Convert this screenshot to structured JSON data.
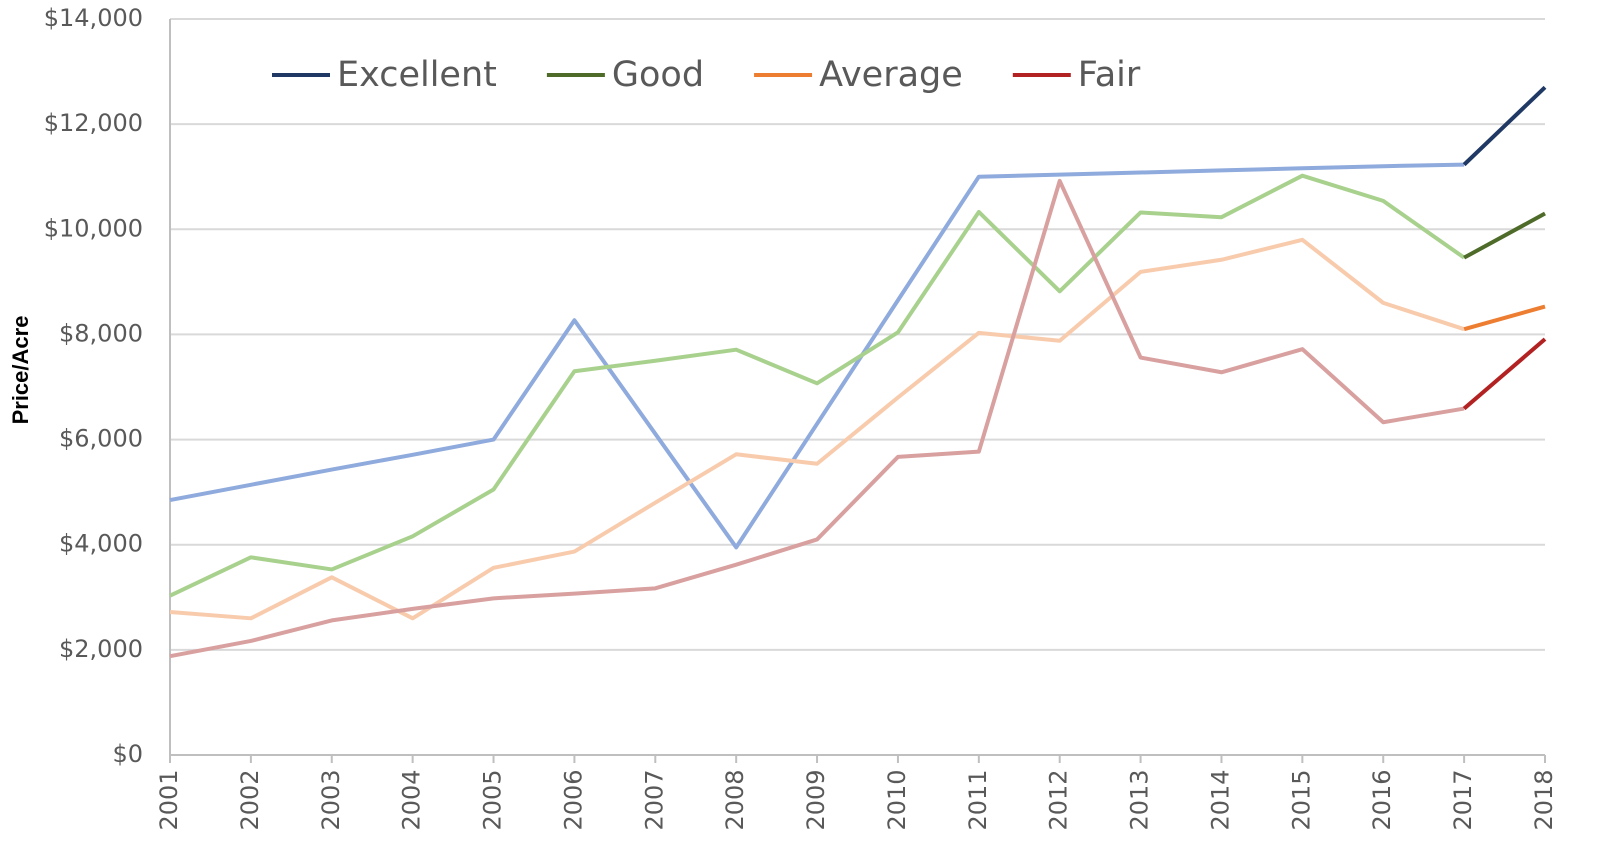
{
  "chart_data": {
    "type": "line",
    "y_label": "Price/Acre",
    "categories": [
      "2001",
      "2002",
      "2003",
      "2004",
      "2005",
      "2006",
      "2007",
      "2008",
      "2009",
      "2010",
      "2011",
      "2012",
      "2013",
      "2014",
      "2015",
      "2016",
      "2017",
      "2018"
    ],
    "series": [
      {
        "name": "Excellent",
        "color": "#1f3864",
        "faded_color": "#8faadc",
        "values": [
          4850,
          5140,
          5430,
          5710,
          6000,
          8270,
          6110,
          3950,
          6300,
          8650,
          11000,
          11040,
          11080,
          11120,
          11160,
          11200,
          11230,
          12700
        ]
      },
      {
        "name": "Good",
        "color": "#4e6b2a",
        "faded_color": "#a9d18e",
        "values": [
          3030,
          3760,
          3530,
          4160,
          5050,
          7300,
          7500,
          7710,
          7070,
          8040,
          10330,
          8820,
          10320,
          10230,
          11020,
          10540,
          9460,
          10300
        ]
      },
      {
        "name": "Average",
        "color": "#ed7d31",
        "faded_color": "#f8cbad",
        "values": [
          2720,
          2600,
          3380,
          2600,
          3560,
          3870,
          4800,
          5720,
          5540,
          6800,
          8030,
          7880,
          9190,
          9420,
          9800,
          8600,
          8100,
          8530
        ]
      },
      {
        "name": "Fair",
        "color": "#b22222",
        "faded_color": "#d9a0a0",
        "values": [
          1880,
          2170,
          2560,
          2780,
          2980,
          3070,
          3170,
          3620,
          4100,
          5670,
          5770,
          10920,
          7560,
          7280,
          7720,
          6330,
          6590,
          7910
        ]
      }
    ],
    "ylim": [
      0,
      14000
    ],
    "yticks": [
      {
        "value": 0,
        "label": "$0"
      },
      {
        "value": 2000,
        "label": "$2,000"
      },
      {
        "value": 4000,
        "label": "$4,000"
      },
      {
        "value": 6000,
        "label": "$6,000"
      },
      {
        "value": 8000,
        "label": "$8,000"
      },
      {
        "value": 10000,
        "label": "$10,000"
      },
      {
        "value": 12000,
        "label": "$12,000"
      },
      {
        "value": 14000,
        "label": "$14,000"
      }
    ],
    "grid": true,
    "legend": "top-left"
  }
}
